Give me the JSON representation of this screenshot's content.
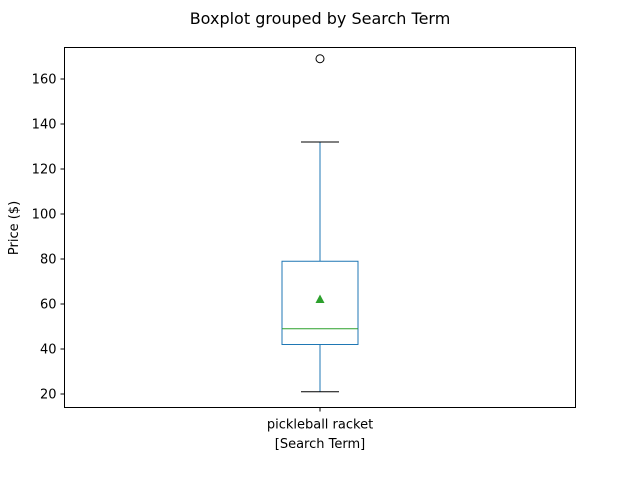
{
  "chart_data": {
    "type": "box",
    "title": "Boxplot grouped by Search Term",
    "xlabel": "[Search Term]",
    "ylabel": "Price ($)",
    "ylim": [
      14,
      174
    ],
    "yticks": [
      20,
      40,
      60,
      80,
      100,
      120,
      140,
      160
    ],
    "grid": false,
    "categories": [
      "pickleball racket"
    ],
    "boxes": [
      {
        "category": "pickleball racket",
        "whisker_low": 21,
        "q1": 42,
        "median": 49,
        "mean": 62,
        "q3": 79,
        "whisker_high": 132,
        "outliers": [
          169
        ]
      }
    ],
    "colors": {
      "box": "#1f77b4",
      "median": "#2ca02c",
      "mean_marker": "#2ca02c",
      "whisker_cap": "#000000",
      "outlier": "#000000"
    }
  }
}
